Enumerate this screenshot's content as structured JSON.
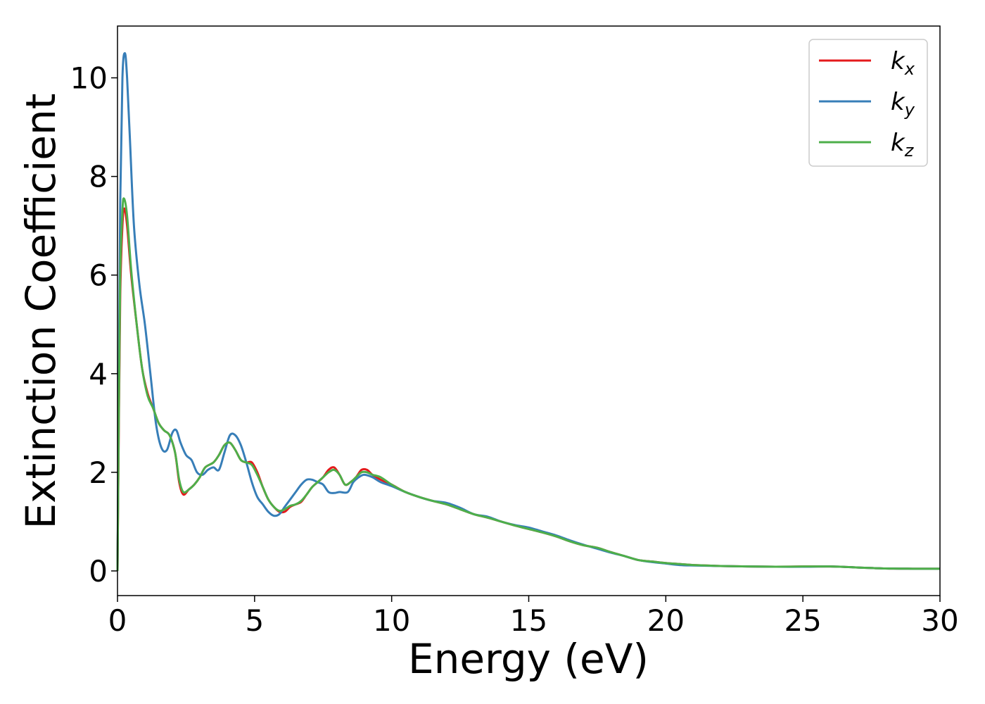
{
  "chart_data": {
    "type": "line",
    "title": "",
    "xlabel": "Energy (eV)",
    "ylabel": "Extinction Coefficient",
    "xlim": [
      0,
      30
    ],
    "ylim": [
      -0.5,
      11.05
    ],
    "xticks": [
      0,
      5,
      10,
      15,
      20,
      25,
      30
    ],
    "yticks": [
      0,
      2,
      4,
      6,
      8,
      10
    ],
    "grid": false,
    "legend_position": "top-right",
    "series": [
      {
        "name": "k",
        "subscript": "x",
        "color": "#e41a1c",
        "points": [
          [
            0,
            0
          ],
          [
            0.05,
            3.0
          ],
          [
            0.1,
            5.6
          ],
          [
            0.18,
            7.0
          ],
          [
            0.25,
            7.35
          ],
          [
            0.35,
            7.0
          ],
          [
            0.5,
            6.0
          ],
          [
            0.7,
            5.0
          ],
          [
            0.9,
            4.1
          ],
          [
            1.1,
            3.6
          ],
          [
            1.3,
            3.3
          ],
          [
            1.5,
            3.0
          ],
          [
            1.7,
            2.85
          ],
          [
            1.9,
            2.75
          ],
          [
            2.1,
            2.4
          ],
          [
            2.25,
            1.8
          ],
          [
            2.4,
            1.55
          ],
          [
            2.6,
            1.65
          ],
          [
            2.8,
            1.75
          ],
          [
            3.0,
            1.9
          ],
          [
            3.2,
            2.1
          ],
          [
            3.5,
            2.2
          ],
          [
            3.7,
            2.35
          ],
          [
            3.9,
            2.55
          ],
          [
            4.1,
            2.6
          ],
          [
            4.3,
            2.45
          ],
          [
            4.5,
            2.25
          ],
          [
            4.7,
            2.2
          ],
          [
            4.9,
            2.2
          ],
          [
            5.1,
            2.0
          ],
          [
            5.3,
            1.7
          ],
          [
            5.5,
            1.45
          ],
          [
            5.7,
            1.3
          ],
          [
            5.9,
            1.2
          ],
          [
            6.1,
            1.2
          ],
          [
            6.3,
            1.3
          ],
          [
            6.5,
            1.35
          ],
          [
            6.7,
            1.4
          ],
          [
            6.9,
            1.55
          ],
          [
            7.1,
            1.7
          ],
          [
            7.3,
            1.8
          ],
          [
            7.5,
            1.9
          ],
          [
            7.7,
            2.05
          ],
          [
            7.9,
            2.1
          ],
          [
            8.1,
            1.95
          ],
          [
            8.3,
            1.75
          ],
          [
            8.5,
            1.8
          ],
          [
            8.7,
            1.9
          ],
          [
            8.9,
            2.05
          ],
          [
            9.1,
            2.05
          ],
          [
            9.3,
            1.95
          ],
          [
            9.6,
            1.85
          ],
          [
            10,
            1.75
          ],
          [
            10.5,
            1.6
          ],
          [
            11,
            1.5
          ],
          [
            11.5,
            1.42
          ],
          [
            12,
            1.35
          ],
          [
            12.5,
            1.25
          ],
          [
            13,
            1.15
          ],
          [
            13.5,
            1.08
          ],
          [
            14,
            1.0
          ],
          [
            14.5,
            0.92
          ],
          [
            15,
            0.85
          ],
          [
            15.5,
            0.78
          ],
          [
            16,
            0.7
          ],
          [
            16.5,
            0.6
          ],
          [
            17,
            0.52
          ],
          [
            17.5,
            0.47
          ],
          [
            18,
            0.38
          ],
          [
            18.5,
            0.3
          ],
          [
            19,
            0.22
          ],
          [
            19.5,
            0.19
          ],
          [
            20,
            0.16
          ],
          [
            20.5,
            0.14
          ],
          [
            21,
            0.12
          ],
          [
            22,
            0.1
          ],
          [
            23,
            0.09
          ],
          [
            24,
            0.085
          ],
          [
            25,
            0.09
          ],
          [
            26,
            0.09
          ],
          [
            27,
            0.07
          ],
          [
            28,
            0.05
          ],
          [
            29,
            0.045
          ],
          [
            30,
            0.045
          ]
        ]
      },
      {
        "name": "k",
        "subscript": "y",
        "color": "#377eb8",
        "points": [
          [
            0,
            0
          ],
          [
            0.05,
            4.0
          ],
          [
            0.1,
            7.5
          ],
          [
            0.18,
            10.0
          ],
          [
            0.27,
            10.5
          ],
          [
            0.35,
            10.0
          ],
          [
            0.45,
            8.8
          ],
          [
            0.6,
            7.0
          ],
          [
            0.8,
            5.8
          ],
          [
            1.0,
            5.0
          ],
          [
            1.2,
            4.0
          ],
          [
            1.4,
            3.0
          ],
          [
            1.6,
            2.5
          ],
          [
            1.8,
            2.45
          ],
          [
            2.0,
            2.8
          ],
          [
            2.15,
            2.85
          ],
          [
            2.3,
            2.6
          ],
          [
            2.5,
            2.35
          ],
          [
            2.7,
            2.25
          ],
          [
            2.9,
            2.0
          ],
          [
            3.1,
            1.95
          ],
          [
            3.3,
            2.05
          ],
          [
            3.5,
            2.1
          ],
          [
            3.7,
            2.05
          ],
          [
            3.9,
            2.4
          ],
          [
            4.1,
            2.75
          ],
          [
            4.3,
            2.75
          ],
          [
            4.5,
            2.55
          ],
          [
            4.7,
            2.2
          ],
          [
            4.9,
            1.8
          ],
          [
            5.1,
            1.5
          ],
          [
            5.3,
            1.35
          ],
          [
            5.5,
            1.2
          ],
          [
            5.7,
            1.12
          ],
          [
            5.9,
            1.15
          ],
          [
            6.1,
            1.3
          ],
          [
            6.3,
            1.45
          ],
          [
            6.5,
            1.6
          ],
          [
            6.7,
            1.75
          ],
          [
            6.9,
            1.85
          ],
          [
            7.1,
            1.85
          ],
          [
            7.3,
            1.8
          ],
          [
            7.5,
            1.75
          ],
          [
            7.7,
            1.6
          ],
          [
            7.9,
            1.58
          ],
          [
            8.1,
            1.6
          ],
          [
            8.4,
            1.6
          ],
          [
            8.6,
            1.8
          ],
          [
            8.8,
            1.9
          ],
          [
            9.0,
            1.95
          ],
          [
            9.3,
            1.9
          ],
          [
            9.6,
            1.8
          ],
          [
            10,
            1.72
          ],
          [
            10.5,
            1.6
          ],
          [
            11,
            1.5
          ],
          [
            11.5,
            1.42
          ],
          [
            12,
            1.38
          ],
          [
            12.5,
            1.28
          ],
          [
            13,
            1.15
          ],
          [
            13.5,
            1.1
          ],
          [
            14,
            1.0
          ],
          [
            14.5,
            0.93
          ],
          [
            15,
            0.88
          ],
          [
            15.5,
            0.8
          ],
          [
            16,
            0.72
          ],
          [
            16.5,
            0.62
          ],
          [
            17,
            0.53
          ],
          [
            17.5,
            0.45
          ],
          [
            18,
            0.37
          ],
          [
            18.5,
            0.3
          ],
          [
            19,
            0.22
          ],
          [
            19.5,
            0.18
          ],
          [
            20,
            0.15
          ],
          [
            20.5,
            0.12
          ],
          [
            21,
            0.11
          ],
          [
            22,
            0.1
          ],
          [
            23,
            0.09
          ],
          [
            24,
            0.085
          ],
          [
            25,
            0.085
          ],
          [
            26,
            0.09
          ],
          [
            27,
            0.07
          ],
          [
            28,
            0.05
          ],
          [
            29,
            0.045
          ],
          [
            30,
            0.045
          ]
        ]
      },
      {
        "name": "k",
        "subscript": "z",
        "color": "#4daf4a",
        "points": [
          [
            0,
            0
          ],
          [
            0.05,
            3.2
          ],
          [
            0.1,
            6.0
          ],
          [
            0.18,
            7.3
          ],
          [
            0.24,
            7.55
          ],
          [
            0.35,
            7.2
          ],
          [
            0.5,
            6.1
          ],
          [
            0.7,
            5.0
          ],
          [
            0.9,
            4.1
          ],
          [
            1.1,
            3.55
          ],
          [
            1.3,
            3.3
          ],
          [
            1.5,
            3.0
          ],
          [
            1.7,
            2.85
          ],
          [
            1.9,
            2.75
          ],
          [
            2.1,
            2.4
          ],
          [
            2.25,
            1.85
          ],
          [
            2.4,
            1.6
          ],
          [
            2.6,
            1.65
          ],
          [
            2.8,
            1.75
          ],
          [
            3.0,
            1.9
          ],
          [
            3.2,
            2.1
          ],
          [
            3.5,
            2.2
          ],
          [
            3.7,
            2.35
          ],
          [
            3.9,
            2.55
          ],
          [
            4.1,
            2.6
          ],
          [
            4.3,
            2.45
          ],
          [
            4.5,
            2.25
          ],
          [
            4.7,
            2.2
          ],
          [
            4.9,
            2.15
          ],
          [
            5.1,
            1.95
          ],
          [
            5.3,
            1.7
          ],
          [
            5.5,
            1.45
          ],
          [
            5.7,
            1.3
          ],
          [
            5.9,
            1.22
          ],
          [
            6.1,
            1.25
          ],
          [
            6.3,
            1.32
          ],
          [
            6.5,
            1.35
          ],
          [
            6.7,
            1.42
          ],
          [
            6.9,
            1.55
          ],
          [
            7.1,
            1.7
          ],
          [
            7.3,
            1.8
          ],
          [
            7.5,
            1.9
          ],
          [
            7.7,
            2.0
          ],
          [
            7.9,
            2.05
          ],
          [
            8.1,
            1.95
          ],
          [
            8.3,
            1.75
          ],
          [
            8.5,
            1.8
          ],
          [
            8.7,
            1.9
          ],
          [
            8.9,
            2.0
          ],
          [
            9.1,
            2.0
          ],
          [
            9.3,
            1.95
          ],
          [
            9.6,
            1.9
          ],
          [
            10,
            1.75
          ],
          [
            10.5,
            1.6
          ],
          [
            11,
            1.5
          ],
          [
            11.5,
            1.42
          ],
          [
            12,
            1.35
          ],
          [
            12.5,
            1.25
          ],
          [
            13,
            1.15
          ],
          [
            13.5,
            1.08
          ],
          [
            14,
            1.0
          ],
          [
            14.5,
            0.92
          ],
          [
            15,
            0.85
          ],
          [
            15.5,
            0.78
          ],
          [
            16,
            0.7
          ],
          [
            16.5,
            0.6
          ],
          [
            17,
            0.52
          ],
          [
            17.5,
            0.47
          ],
          [
            18,
            0.38
          ],
          [
            18.5,
            0.3
          ],
          [
            19,
            0.22
          ],
          [
            19.5,
            0.19
          ],
          [
            20,
            0.16
          ],
          [
            20.5,
            0.14
          ],
          [
            21,
            0.12
          ],
          [
            22,
            0.1
          ],
          [
            23,
            0.09
          ],
          [
            24,
            0.085
          ],
          [
            25,
            0.09
          ],
          [
            26,
            0.09
          ],
          [
            27,
            0.07
          ],
          [
            28,
            0.05
          ],
          [
            29,
            0.045
          ],
          [
            30,
            0.045
          ]
        ]
      }
    ]
  }
}
